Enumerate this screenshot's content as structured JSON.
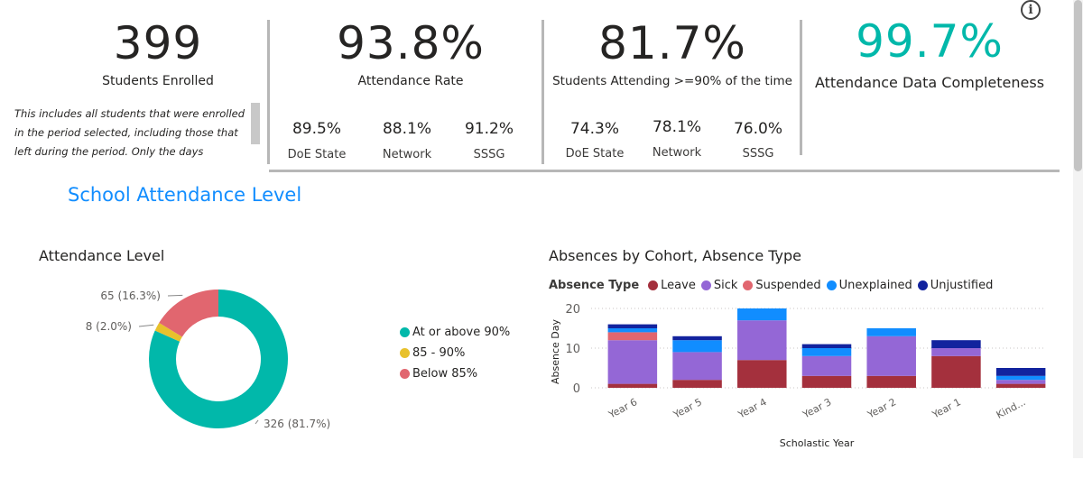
{
  "kpis": {
    "enrolled": {
      "value": "399",
      "label": "Students Enrolled",
      "note": "This includes all students that were enrolled in the period selected, including those that left during the period. Only the days enrolled are"
    },
    "attendance_rate": {
      "value": "93.8%",
      "label": "Attendance Rate",
      "comparisons": [
        {
          "value": "89.5%",
          "label": "DoE State"
        },
        {
          "value": "88.1%",
          "label": "Network"
        },
        {
          "value": "91.2%",
          "label": "SSSG"
        }
      ]
    },
    "attending_90": {
      "value": "81.7%",
      "label": "Students Attending >=90% of the time",
      "comparisons": [
        {
          "value": "74.3%",
          "label": "DoE State"
        },
        {
          "value": "78.1%",
          "label": "Network"
        },
        {
          "value": "76.0%",
          "label": "SSSG"
        }
      ]
    },
    "completeness": {
      "value": "99.7%",
      "label": "Attendance Data Completeness",
      "color": "#01b8aa"
    }
  },
  "info_icon": "info-icon",
  "section_title": "School Attendance Level",
  "chart_data": [
    {
      "type": "pie",
      "title": "Attendance Level",
      "donut": true,
      "slices": [
        {
          "name": "At or above 90%",
          "value": 326,
          "label": "326 (81.7%)",
          "color": "#01b8aa"
        },
        {
          "name": "85 - 90%",
          "value": 8,
          "label": "8 (2.0%)",
          "color": "#e8c12c"
        },
        {
          "name": "Below 85%",
          "value": 65,
          "label": "65 (16.3%)",
          "color": "#e1666f"
        }
      ],
      "legend_position": "right"
    },
    {
      "type": "bar",
      "stacked": true,
      "title": "Absences by Cohort, Absence Type",
      "legend_title": "Absence Type",
      "legend_position": "top-left",
      "xlabel": "Scholastic Year",
      "ylabel": "Absence Day",
      "ylim": [
        0,
        20
      ],
      "yticks": [
        "0",
        "10",
        "20"
      ],
      "grid": true,
      "categories": [
        "Year 6",
        "Year 5",
        "Year 4",
        "Year 3",
        "Year 2",
        "Year 1",
        "Kind..."
      ],
      "series": [
        {
          "name": "Leave",
          "color": "#a4303d",
          "values": [
            1,
            2,
            7,
            3,
            3,
            8,
            1
          ]
        },
        {
          "name": "Sick",
          "color": "#9467d6",
          "values": [
            11,
            7,
            10,
            5,
            10,
            2,
            1
          ]
        },
        {
          "name": "Suspended",
          "color": "#e1666f",
          "values": [
            2,
            0,
            0,
            0,
            0,
            0,
            0
          ]
        },
        {
          "name": "Unexplained",
          "color": "#118dff",
          "values": [
            1,
            3,
            3,
            2,
            2,
            0,
            1
          ]
        },
        {
          "name": "Unjustified",
          "color": "#12239e",
          "values": [
            1,
            1,
            0,
            1,
            0,
            2,
            2
          ]
        }
      ]
    }
  ]
}
